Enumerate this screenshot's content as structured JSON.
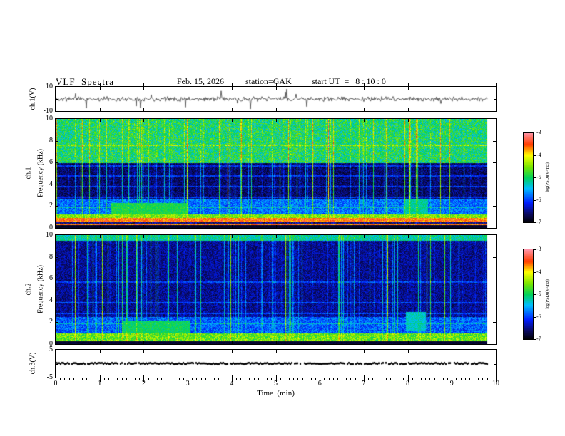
{
  "header": {
    "title": "VLF  Spectra",
    "date": "Feb. 15, 2026",
    "station": "station=GAK",
    "start_ut": "start UT  =   8 : 10 : 0"
  },
  "axes": {
    "time_label": "Time  (min)",
    "x_ticks": [
      "0",
      "1",
      "2",
      "3",
      "4",
      "5",
      "6",
      "7",
      "8",
      "9",
      "10"
    ],
    "x_range": [
      0,
      10
    ],
    "data_end_min": 9.8
  },
  "panels": {
    "waveform": {
      "label": "ch.1(V)",
      "yticks": [
        "10",
        "-10"
      ],
      "ylim": [
        -10,
        10
      ]
    },
    "spec1": {
      "channel": "ch.1",
      "ylabel": "Frequency (kHz)",
      "yticks": [
        "10",
        "8",
        "6",
        "4",
        "2",
        "0"
      ],
      "ylim": [
        0,
        10
      ]
    },
    "spec2": {
      "channel": "ch.2",
      "ylabel": "Frequency (kHz)",
      "yticks": [
        "10",
        "8",
        "6",
        "4",
        "2",
        "0"
      ],
      "ylim": [
        0,
        10
      ]
    },
    "ch3": {
      "label": "ch.3(V)",
      "yticks": [
        "5",
        "-5"
      ],
      "ylim": [
        -5,
        5
      ]
    }
  },
  "colorbar": {
    "label": "log(PSD)(V²/Hz)",
    "ticks": [
      "-3",
      "-4",
      "-5",
      "-6",
      "-7"
    ],
    "range": [
      -7,
      -3
    ]
  },
  "colormap": [
    {
      "t": 0.0,
      "rgb": [
        0,
        0,
        0
      ]
    },
    {
      "t": 0.1,
      "rgb": [
        10,
        10,
        100
      ]
    },
    {
      "t": 0.22,
      "rgb": [
        0,
        30,
        255
      ]
    },
    {
      "t": 0.38,
      "rgb": [
        0,
        190,
        255
      ]
    },
    {
      "t": 0.5,
      "rgb": [
        0,
        210,
        90
      ]
    },
    {
      "t": 0.62,
      "rgb": [
        120,
        230,
        0
      ]
    },
    {
      "t": 0.75,
      "rgb": [
        255,
        255,
        0
      ]
    },
    {
      "t": 0.87,
      "rgb": [
        255,
        60,
        0
      ]
    },
    {
      "t": 1.0,
      "rgb": [
        255,
        150,
        170
      ]
    }
  ],
  "chart_data": [
    {
      "type": "line",
      "name": "ch1_waveform",
      "ylabel": "ch.1(V)",
      "xlim": [
        0,
        10
      ],
      "ylim": [
        -10,
        10
      ],
      "description": "Broadband VLF time-series noise around 0 V (~±2 V) with impulsive sferic spikes reaching about ±9 V; record ends at 9.8 min",
      "seed": 11,
      "noise_amp_V": 2.4,
      "spike_prob": 0.02,
      "spike_amp_V": [
        3,
        9
      ]
    },
    {
      "type": "heatmap",
      "name": "ch1_spectrogram",
      "xlabel": "Time (min)",
      "ylabel": "Frequency (kHz)",
      "xlim": [
        0,
        10
      ],
      "ylim": [
        0,
        10
      ],
      "zlabel": "log(PSD)(V²/Hz)",
      "zlim": [
        -7,
        -3
      ],
      "description": "ch.1 spectrogram: intense red/yellow band below ~1 kHz, yellow-green transition near 1-1.3 kHz, blue 1.3-2.7 kHz, dark navy 2.7-6 kHz cut by bright vertical sferic streaks, dense green/yellow speckle 6-10 kHz; green patch near 1.3-3 min at 1-2.3 kHz and near 8.1 min at ~2 kHz; thin cyan horizontal lines (harmonics)",
      "seed": 7,
      "zones": [
        {
          "f": [
            0.0,
            0.03
          ],
          "v": 0.04,
          "n": 0.02
        },
        {
          "f": [
            0.03,
            0.095
          ],
          "v": 0.85,
          "n": 0.1
        },
        {
          "f": [
            0.095,
            0.13
          ],
          "v": 0.62,
          "n": 0.1
        },
        {
          "f": [
            0.13,
            0.27
          ],
          "v": 0.3,
          "n": 0.1
        },
        {
          "f": [
            0.27,
            0.6
          ],
          "v": 0.1,
          "n": 0.08
        },
        {
          "f": [
            0.6,
            1.0
          ],
          "v": 0.5,
          "n": 0.14
        }
      ],
      "gains": [
        0,
        0.05,
        0.1,
        0.3,
        0.55,
        0.3
      ],
      "hlines": [
        0.19,
        0.285,
        0.38,
        0.48,
        0.57,
        0.76
      ],
      "darkrow": [
        0.045,
        0.058
      ],
      "patches": [
        {
          "t": [
            1.25,
            3.0
          ],
          "f": [
            0.1,
            0.23
          ],
          "v": 0.52
        },
        {
          "t": [
            7.9,
            8.45
          ],
          "f": [
            0.12,
            0.27
          ],
          "v": 0.45
        }
      ]
    },
    {
      "type": "heatmap",
      "name": "ch2_spectrogram",
      "xlabel": "Time (min)",
      "ylabel": "Frequency (kHz)",
      "xlim": [
        0,
        10
      ],
      "ylim": [
        0,
        10
      ],
      "zlabel": "log(PSD)(V²/Hz)",
      "zlim": [
        -7,
        -3
      ],
      "description": "ch.2 spectrogram: green/yellow band below ~1 kHz, blue-cyan 1-2.5 kHz, dark blue 2.5-9.5 kHz with vertical sferic streaks, greenish row near 10 kHz; green patch near 1.5-3 min at 1-2.2 kHz and near 8.1 min at ~2 kHz",
      "seed": 13,
      "zones": [
        {
          "f": [
            0.0,
            0.03
          ],
          "v": 0.05,
          "n": 0.02
        },
        {
          "f": [
            0.03,
            0.1
          ],
          "v": 0.6,
          "n": 0.12
        },
        {
          "f": [
            0.1,
            0.25
          ],
          "v": 0.28,
          "n": 0.1
        },
        {
          "f": [
            0.25,
            0.95
          ],
          "v": 0.13,
          "n": 0.08
        },
        {
          "f": [
            0.95,
            1.0
          ],
          "v": 0.45,
          "n": 0.1
        }
      ],
      "gains": [
        0,
        0.15,
        0.3,
        0.45,
        0.25
      ],
      "hlines": [
        0.19,
        0.285,
        0.38,
        0.57
      ],
      "darkrow": null,
      "patches": [
        {
          "t": [
            1.5,
            3.05
          ],
          "f": [
            0.1,
            0.22
          ],
          "v": 0.5
        },
        {
          "t": [
            7.95,
            8.4
          ],
          "f": [
            0.13,
            0.3
          ],
          "v": 0.42
        }
      ]
    },
    {
      "type": "line",
      "name": "ch3_waveform",
      "ylabel": "ch.3(V)",
      "xlim": [
        0,
        10
      ],
      "ylim": [
        -5,
        5
      ],
      "description": "Flat signal at ~0 V shown as a dense dotted black band; record ends at 9.8 min",
      "seed": 23
    }
  ]
}
